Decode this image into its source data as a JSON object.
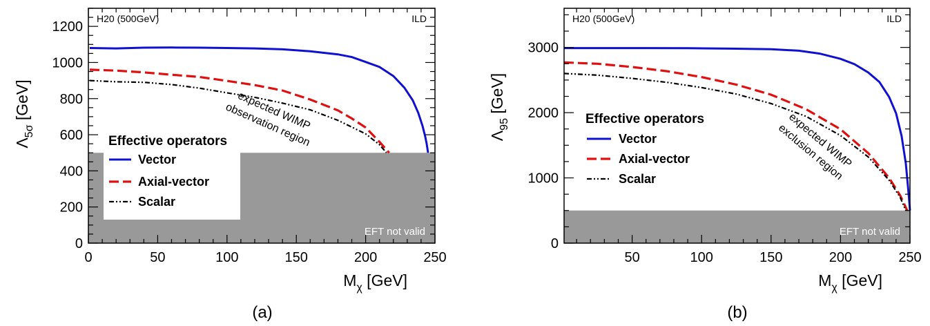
{
  "chart_data": [
    {
      "type": "line",
      "panel_label": "(a)",
      "top_left_label": "H20 (500GeV)",
      "top_right_label": "ILD",
      "xlabel": "M",
      "xlabel_sub": "χ",
      "xlabel_unit": " [GeV]",
      "ylabel": "Λ",
      "ylabel_sub": "5σ",
      "ylabel_unit": " [GeV]",
      "xlim": [
        0,
        250
      ],
      "ylim": [
        0,
        1300
      ],
      "xticks": [
        0,
        50,
        100,
        150,
        200,
        250
      ],
      "yticks": [
        0,
        200,
        400,
        600,
        800,
        1000,
        1200
      ],
      "legend": {
        "title": "Effective operators",
        "placement": "bottom-left",
        "entries": [
          "Vector",
          "Axial-vector",
          "Scalar"
        ]
      },
      "annotation_lines": [
        "expected WIMP",
        "observation region"
      ],
      "shaded_region": {
        "label": "EFT not valid",
        "y_max": 500,
        "color": "#999999"
      },
      "series": [
        {
          "name": "Vector",
          "color": "#1010d0",
          "style": "solid",
          "x": [
            1,
            20,
            40,
            60,
            80,
            100,
            120,
            140,
            160,
            180,
            190,
            200,
            210,
            220,
            228,
            234,
            238,
            241,
            243,
            244,
            245
          ],
          "y": [
            1080,
            1078,
            1082,
            1083,
            1082,
            1080,
            1078,
            1073,
            1062,
            1045,
            1030,
            1003,
            975,
            925,
            860,
            790,
            720,
            650,
            590,
            550,
            500
          ]
        },
        {
          "name": "Axial-vector",
          "color": "#e01010",
          "style": "dashed",
          "x": [
            1,
            20,
            40,
            60,
            80,
            100,
            120,
            140,
            160,
            180,
            190,
            200,
            210,
            217
          ],
          "y": [
            960,
            955,
            945,
            932,
            920,
            898,
            875,
            845,
            795,
            735,
            690,
            640,
            560,
            500
          ]
        },
        {
          "name": "Scalar",
          "color": "#000000",
          "style": "dashdot",
          "x": [
            1,
            20,
            40,
            60,
            80,
            100,
            120,
            140,
            160,
            180,
            200,
            210,
            215
          ],
          "y": [
            900,
            893,
            890,
            878,
            858,
            832,
            807,
            775,
            738,
            680,
            605,
            545,
            500
          ]
        }
      ]
    },
    {
      "type": "line",
      "panel_label": "(b)",
      "top_left_label": "H20 (500GeV)",
      "top_right_label": "ILD",
      "xlabel": "M",
      "xlabel_sub": "χ",
      "xlabel_unit": " [GeV]",
      "ylabel": "Λ",
      "ylabel_sub": "95",
      "ylabel_unit": " [GeV]",
      "xlim": [
        1,
        250
      ],
      "ylim": [
        0,
        3600
      ],
      "xticks": [
        50,
        100,
        150,
        200,
        250
      ],
      "yticks": [
        0,
        1000,
        2000,
        3000
      ],
      "legend": {
        "title": "Effective operators",
        "placement": "middle-left",
        "entries": [
          "Vector",
          "Axial-vector",
          "Scalar"
        ]
      },
      "annotation_lines": [
        "expected WIMP",
        "exclusion region"
      ],
      "shaded_region": {
        "label": "EFT not valid",
        "y_max": 500,
        "color": "#999999"
      },
      "series": [
        {
          "name": "Vector",
          "color": "#1010d0",
          "style": "solid",
          "x": [
            1,
            30,
            60,
            90,
            120,
            150,
            170,
            185,
            200,
            210,
            220,
            228,
            235,
            240,
            244,
            247,
            249,
            250
          ],
          "y": [
            2990,
            2990,
            2990,
            2988,
            2982,
            2972,
            2950,
            2905,
            2825,
            2745,
            2615,
            2470,
            2240,
            1990,
            1640,
            1220,
            760,
            500
          ]
        },
        {
          "name": "Axial-vector",
          "color": "#e01010",
          "style": "dashed",
          "x": [
            1,
            25,
            50,
            75,
            100,
            125,
            150,
            175,
            200,
            220,
            235,
            243,
            248
          ],
          "y": [
            2770,
            2750,
            2700,
            2635,
            2545,
            2430,
            2275,
            2055,
            1745,
            1380,
            1000,
            730,
            500
          ]
        },
        {
          "name": "Scalar",
          "color": "#000000",
          "style": "dashdot",
          "x": [
            1,
            25,
            50,
            75,
            100,
            125,
            150,
            175,
            200,
            220,
            235,
            243,
            247
          ],
          "y": [
            2600,
            2575,
            2525,
            2465,
            2385,
            2285,
            2140,
            1945,
            1650,
            1320,
            965,
            700,
            500
          ]
        }
      ]
    }
  ]
}
